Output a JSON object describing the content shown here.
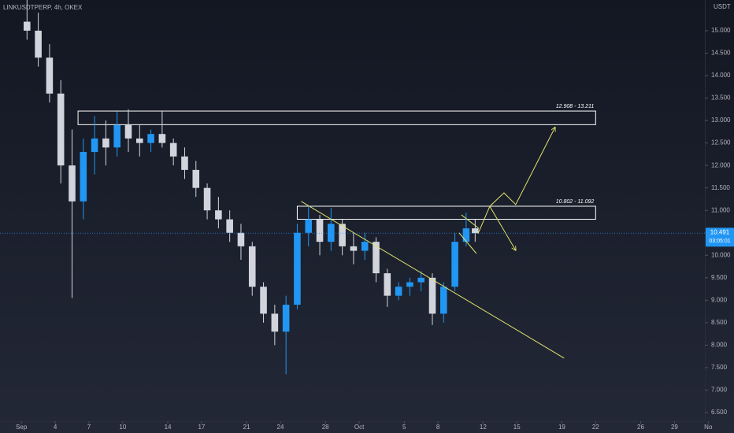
{
  "chart_data": {
    "type": "candlestick",
    "title": "LINKUSDTPERP, 4h, OKEX",
    "currency": "USDT",
    "x": [
      1.5,
      2.5,
      3.5,
      4.5,
      5.5,
      6.5,
      7.5,
      8.5,
      9.5,
      10.5,
      11.5,
      12.5,
      13.5,
      14.5,
      15.5,
      16.5,
      17.5,
      18.5,
      19.5,
      20.5,
      21.5,
      22.5,
      23.5,
      24.5,
      25.5,
      26.5,
      27.5,
      28.5,
      29.5,
      30.5,
      31.5,
      32.5,
      33.5,
      34.5,
      35.5,
      36.5,
      37.5,
      38.5,
      39.5,
      40.5,
      41.3
    ],
    "open": [
      15.2,
      15.0,
      14.4,
      13.6,
      12.0,
      11.2,
      12.3,
      12.6,
      12.4,
      12.9,
      12.6,
      12.5,
      12.7,
      12.5,
      12.2,
      11.9,
      11.5,
      11.0,
      10.8,
      10.5,
      10.2,
      9.3,
      8.7,
      8.3,
      8.9,
      10.5,
      10.8,
      10.3,
      10.7,
      10.2,
      10.1,
      10.3,
      9.6,
      9.1,
      9.3,
      9.4,
      9.5,
      8.7,
      9.3,
      10.3,
      10.6
    ],
    "high": [
      15.7,
      15.4,
      14.7,
      13.9,
      12.8,
      12.6,
      13.1,
      13.0,
      13.2,
      13.25,
      12.9,
      12.8,
      13.2,
      12.6,
      12.4,
      12.1,
      11.6,
      11.3,
      11.0,
      10.7,
      10.3,
      9.4,
      8.9,
      9.1,
      10.7,
      11.1,
      10.9,
      11.05,
      10.8,
      10.5,
      10.5,
      10.4,
      9.7,
      9.4,
      9.5,
      9.65,
      9.6,
      9.4,
      10.5,
      10.95,
      10.8
    ],
    "low": [
      14.8,
      14.2,
      13.4,
      11.6,
      9.05,
      10.8,
      11.8,
      12.0,
      12.2,
      12.3,
      12.2,
      12.3,
      12.4,
      12.0,
      11.7,
      11.3,
      10.8,
      10.6,
      10.3,
      9.9,
      9.1,
      8.5,
      8.0,
      7.35,
      8.8,
      10.2,
      10.0,
      10.1,
      10.0,
      9.8,
      9.9,
      9.4,
      8.85,
      9.0,
      9.1,
      9.2,
      8.45,
      8.5,
      9.2,
      10.2,
      10.3
    ],
    "close": [
      15.0,
      14.4,
      13.6,
      12.0,
      11.2,
      12.3,
      12.6,
      12.4,
      12.9,
      12.6,
      12.5,
      12.7,
      12.5,
      12.2,
      11.9,
      11.5,
      11.0,
      10.8,
      10.5,
      10.2,
      9.3,
      8.7,
      8.3,
      8.9,
      10.5,
      10.8,
      10.3,
      10.7,
      10.2,
      10.1,
      10.3,
      9.6,
      9.1,
      9.3,
      9.4,
      9.5,
      8.7,
      9.3,
      10.3,
      10.6,
      10.491
    ],
    "up_color": "#2196f3",
    "down_color": "#d1d4dc",
    "last_price": 10.491,
    "countdown": "03:05:01",
    "xlim": [
      -0.9,
      61.7
    ],
    "xticks": [
      {
        "value": 1,
        "label": "Sep"
      },
      4,
      7,
      10,
      14,
      17,
      21,
      24,
      28,
      {
        "value": 31,
        "label": "Oct"
      },
      {
        "value": 35,
        "label": "5"
      },
      {
        "value": 38,
        "label": "8"
      },
      {
        "value": 42,
        "label": "12"
      },
      {
        "value": 45,
        "label": "15"
      },
      {
        "value": 49,
        "label": "19"
      },
      {
        "value": 52,
        "label": "22"
      },
      {
        "value": 56,
        "label": "26"
      },
      {
        "value": 59,
        "label": "29"
      },
      {
        "value": 62,
        "label": "No"
      }
    ],
    "ylim": [
      6.307,
      15.683
    ],
    "yticks": [
      {
        "value": 6.5,
        "label": "6.500"
      },
      {
        "value": 7,
        "label": "7.000"
      },
      {
        "value": 7.5,
        "label": "7.500"
      },
      {
        "value": 8,
        "label": "8.000"
      },
      {
        "value": 8.5,
        "label": "8.500"
      },
      {
        "value": 9,
        "label": "9.000"
      },
      {
        "value": 9.5,
        "label": "9.500"
      },
      {
        "value": 10,
        "label": "10.000"
      },
      {
        "value": 10.5,
        "label": "10.500"
      },
      {
        "value": 11,
        "label": "11.000"
      },
      {
        "value": 11.5,
        "label": "11.500"
      },
      {
        "value": 12,
        "label": "12.000"
      },
      {
        "value": 12.5,
        "label": "12.500"
      },
      {
        "value": 13,
        "label": "13.000"
      },
      {
        "value": 13.5,
        "label": "13.500"
      },
      {
        "value": 14,
        "label": "14.000"
      },
      {
        "value": 14.5,
        "label": "14.500"
      },
      {
        "value": 15,
        "label": "15.000"
      }
    ],
    "grid": false,
    "zone_color": "#ffffff",
    "zones": [
      {
        "label": "12.908 - 13.211",
        "low": 12.908,
        "high": 13.211,
        "from": 6.03,
        "to": 52.0
      },
      {
        "label": "10.802 - 11.092",
        "low": 10.802,
        "high": 11.092,
        "from": 25.5,
        "to": 52.0
      }
    ],
    "drawing_color": "#dfe36a",
    "drawings": [
      {
        "x": [
          25.85,
          49.2
        ],
        "y": [
          11.2,
          7.71
        ],
        "arrow": false
      },
      {
        "x": [
          40.08,
          41.62
        ],
        "y": [
          10.9,
          10.6
        ],
        "arrow": false
      },
      {
        "x": [
          39.87,
          41.41
        ],
        "y": [
          10.5,
          10.04
        ],
        "arrow": false
      },
      {
        "x": [
          41.55,
          42.6,
          43.86,
          44.9,
          48.4
        ],
        "y": [
          10.48,
          11.09,
          11.39,
          11.13,
          12.85
        ],
        "arrow": true
      },
      {
        "x": [
          42.6,
          44.9
        ],
        "y": [
          11.09,
          10.11
        ],
        "arrow": true
      }
    ]
  }
}
